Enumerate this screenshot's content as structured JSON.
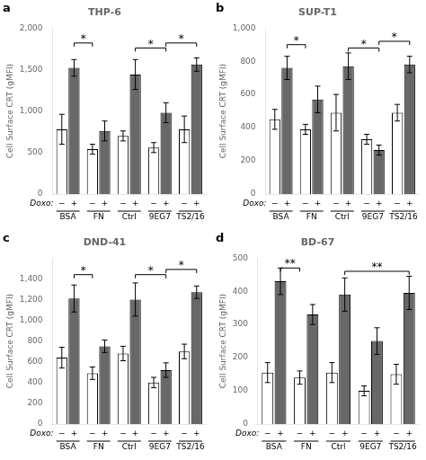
{
  "chart_data": [
    {
      "type": "bar",
      "panel_label": "a",
      "title": "THP-6",
      "ylabel": "Cell Surface CRT (gMFI)",
      "series_label": "Doxo:",
      "categories": [
        "BSA",
        "FN",
        "Ctrl",
        "9EG7",
        "TS2/16"
      ],
      "series": [
        {
          "name": "−",
          "color": "#ffffff",
          "values": [
            780,
            540,
            700,
            560,
            780
          ],
          "errors": [
            180,
            60,
            60,
            60,
            160
          ]
        },
        {
          "name": "+",
          "color": "#686868",
          "values": [
            1520,
            760,
            1440,
            980,
            1560
          ],
          "errors": [
            100,
            120,
            180,
            120,
            80
          ]
        }
      ],
      "ylim": [
        0,
        2000
      ],
      "yticks": [
        0,
        500,
        1000,
        1500,
        2000
      ],
      "grid": false,
      "significance": [
        {
          "text": "*",
          "y": 1820,
          "from": {
            "category": "BSA",
            "series": "+"
          },
          "to": {
            "category": "FN",
            "series": "−"
          }
        },
        {
          "text": "*",
          "y": 1760,
          "from": {
            "category": "Ctrl",
            "series": "+"
          },
          "to": {
            "category": "9EG7",
            "series": "+"
          }
        },
        {
          "text": "*",
          "y": 1820,
          "from": {
            "category": "9EG7",
            "series": "+"
          },
          "to": {
            "category": "TS2/16",
            "series": "+"
          }
        }
      ]
    },
    {
      "type": "bar",
      "panel_label": "b",
      "title": "SUP-T1",
      "ylabel": "Cell Surface CRT (gMFI)",
      "series_label": "Doxo:",
      "categories": [
        "BSA",
        "FN",
        "Ctrl",
        "9EG7",
        "TS2/16"
      ],
      "series": [
        {
          "name": "−",
          "color": "#ffffff",
          "values": [
            450,
            390,
            490,
            330,
            490
          ],
          "errors": [
            60,
            30,
            110,
            30,
            50
          ]
        },
        {
          "name": "+",
          "color": "#686868",
          "values": [
            760,
            570,
            770,
            265,
            780
          ],
          "errors": [
            70,
            80,
            80,
            30,
            50
          ]
        }
      ],
      "ylim": [
        0,
        1000
      ],
      "yticks": [
        0,
        200,
        400,
        600,
        800,
        1000
      ],
      "grid": false,
      "significance": [
        {
          "text": "*",
          "y": 900,
          "from": {
            "category": "BSA",
            "series": "+"
          },
          "to": {
            "category": "FN",
            "series": "−"
          }
        },
        {
          "text": "*",
          "y": 880,
          "from": {
            "category": "Ctrl",
            "series": "+"
          },
          "to": {
            "category": "9EG7",
            "series": "+"
          }
        },
        {
          "text": "*",
          "y": 920,
          "from": {
            "category": "9EG7",
            "series": "+"
          },
          "to": {
            "category": "TS2/16",
            "series": "+"
          }
        }
      ]
    },
    {
      "type": "bar",
      "panel_label": "c",
      "title": "DND-41",
      "ylabel": "Cell Surface CRT (gMFI)",
      "series_label": "Doxo:",
      "categories": [
        "BSA",
        "FN",
        "Ctrl",
        "9EG7",
        "TS2/16"
      ],
      "series": [
        {
          "name": "−",
          "color": "#ffffff",
          "values": [
            640,
            490,
            680,
            400,
            700
          ],
          "errors": [
            100,
            60,
            70,
            50,
            70
          ]
        },
        {
          "name": "+",
          "color": "#686868",
          "values": [
            1210,
            750,
            1200,
            520,
            1270
          ],
          "errors": [
            130,
            60,
            160,
            70,
            60
          ]
        }
      ],
      "ylim": [
        0,
        1600
      ],
      "yticks": [
        0,
        200,
        400,
        600,
        800,
        1000,
        1200,
        1400
      ],
      "grid": false,
      "significance": [
        {
          "text": "*",
          "y": 1440,
          "from": {
            "category": "BSA",
            "series": "+"
          },
          "to": {
            "category": "FN",
            "series": "−"
          }
        },
        {
          "text": "*",
          "y": 1440,
          "from": {
            "category": "Ctrl",
            "series": "+"
          },
          "to": {
            "category": "9EG7",
            "series": "+"
          }
        },
        {
          "text": "*",
          "y": 1490,
          "from": {
            "category": "9EG7",
            "series": "+"
          },
          "to": {
            "category": "TS2/16",
            "series": "+"
          }
        }
      ]
    },
    {
      "type": "bar",
      "panel_label": "d",
      "title": "BD-67",
      "ylabel": "Cell Surface CRT (gMFI)",
      "series_label": "Doxo:",
      "categories": [
        "BSA",
        "FN",
        "Ctrl",
        "9EG7",
        "TS2/16"
      ],
      "series": [
        {
          "name": "−",
          "color": "#ffffff",
          "values": [
            155,
            140,
            155,
            100,
            150
          ],
          "errors": [
            30,
            20,
            30,
            15,
            30
          ]
        },
        {
          "name": "+",
          "color": "#686868",
          "values": [
            430,
            330,
            390,
            250,
            395
          ],
          "errors": [
            40,
            30,
            50,
            40,
            50
          ]
        }
      ],
      "ylim": [
        0,
        500
      ],
      "yticks": [
        0,
        100,
        200,
        300,
        400,
        500
      ],
      "grid": false,
      "significance": [
        {
          "text": "**",
          "y": 470,
          "from": {
            "category": "BSA",
            "series": "+"
          },
          "to": {
            "category": "FN",
            "series": "−"
          }
        },
        {
          "text": "**",
          "y": 460,
          "from": {
            "category": "Ctrl",
            "series": "+"
          },
          "to": {
            "category": "TS2/16",
            "series": "+"
          }
        }
      ]
    }
  ]
}
